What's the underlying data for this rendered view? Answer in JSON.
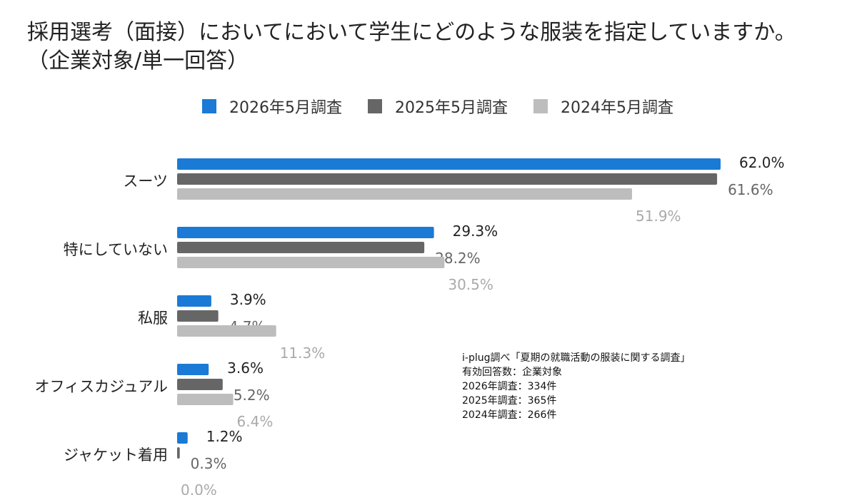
{
  "title": {
    "line1": "採用選考（面接）においてにおいて学生にどのような服装を指定していますか。",
    "line2": "（企業対象/単一回答）"
  },
  "note": {
    "lines": [
      "i-plug調べ「夏期の就職活動の服装に関する調査」",
      "有効回答数：企業対象",
      "2026年調査：334件",
      "2025年調査：365件",
      "2024年調査：266件"
    ]
  },
  "chart_data": {
    "type": "bar",
    "orientation": "horizontal",
    "categories": [
      "スーツ",
      "特にしていない",
      "私服",
      "オフィスカジュアル",
      "ジャケット着用"
    ],
    "series": [
      {
        "name": "2026年5月調査",
        "values": [
          62.0,
          29.3,
          3.9,
          3.6,
          1.2
        ],
        "labels": [
          "62.0%",
          "29.3%",
          "3.9%",
          "3.6%",
          "1.2%"
        ],
        "color": "#1a7ad6",
        "label_color": "#222222"
      },
      {
        "name": "2025年5月調査",
        "values": [
          61.6,
          28.2,
          4.7,
          5.2,
          0.3
        ],
        "labels": [
          "61.6%",
          "28.2%",
          "4.7%",
          "5.2%",
          "0.3%"
        ],
        "color": "#666666",
        "label_color": "#666666"
      },
      {
        "name": "2024年5月調査",
        "values": [
          51.9,
          30.5,
          11.3,
          6.4,
          0.0
        ],
        "labels": [
          "51.9%",
          "30.5%",
          "11.3%",
          "6.4%",
          "0.0%"
        ],
        "color": "#bdbdbd",
        "label_color": "#aaaaaa"
      }
    ],
    "xlim": [
      0,
      62.0
    ],
    "grid": false,
    "legend": "top"
  }
}
